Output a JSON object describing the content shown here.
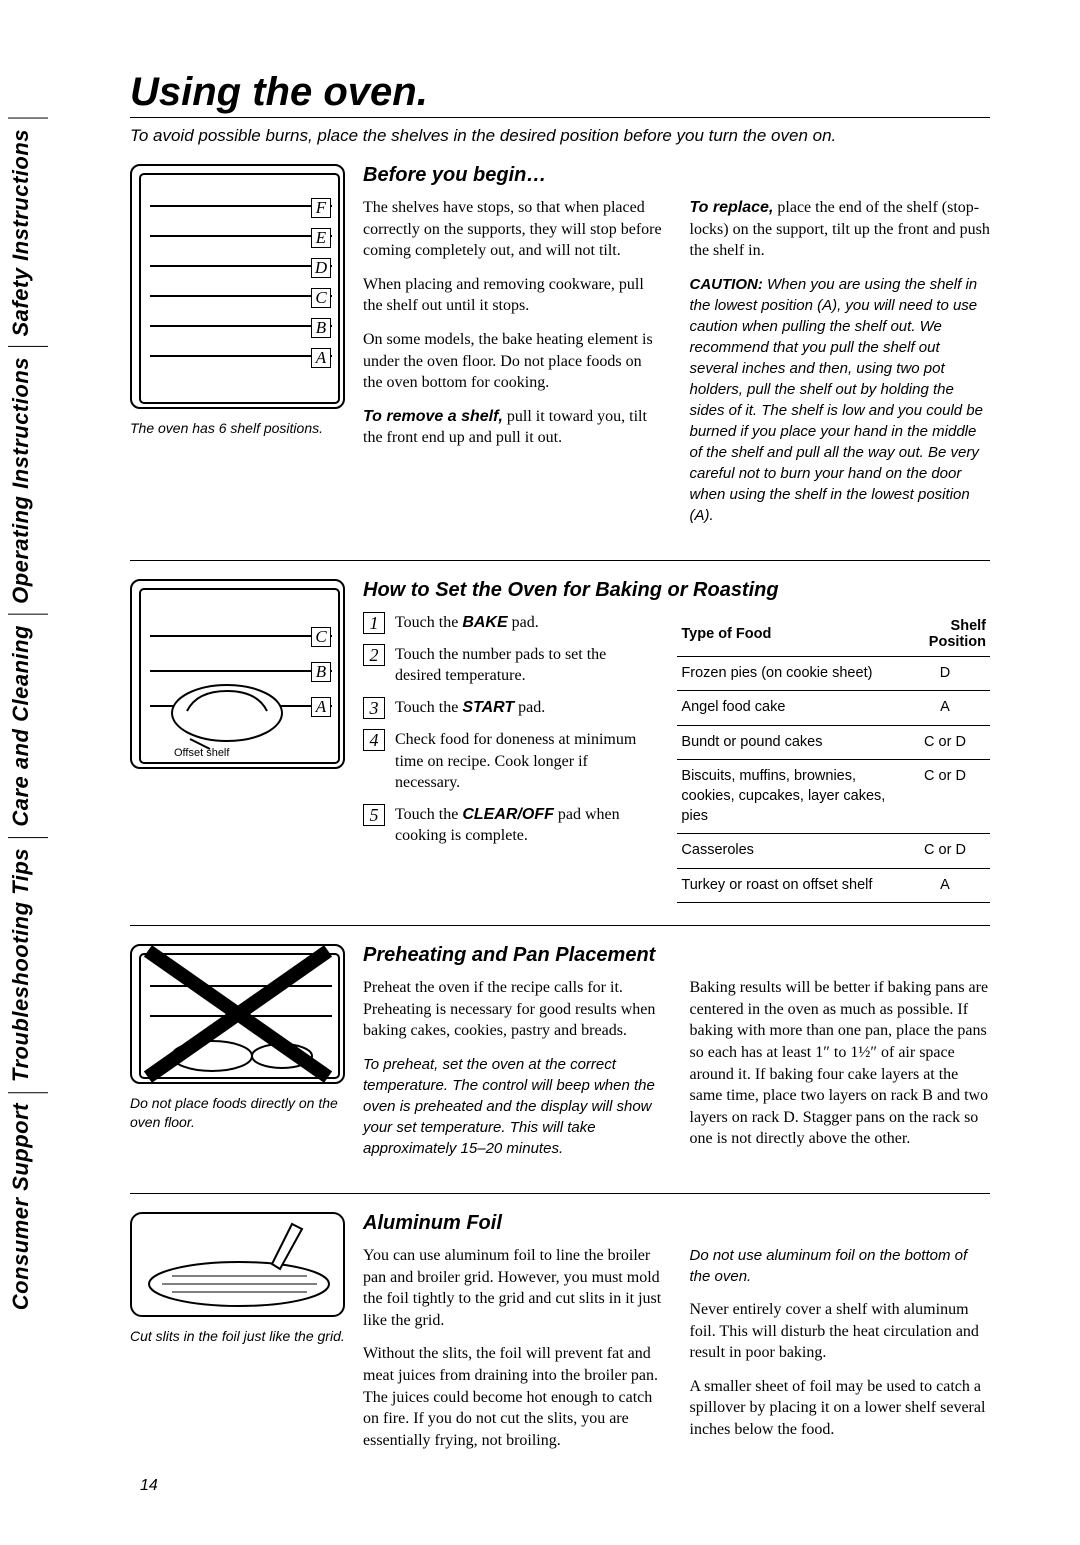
{
  "page_number": "14",
  "tabs": [
    "Consumer Support",
    "Troubleshooting Tips",
    "Care and Cleaning",
    "Operating Instructions",
    "Safety Instructions"
  ],
  "title": "Using the oven.",
  "subtitle": "To avoid possible burns, place the shelves in the desired position before you turn the oven on.",
  "sec1": {
    "heading": "Before you begin…",
    "caption": "The oven has 6 shelf positions.",
    "positions": [
      "F",
      "E",
      "D",
      "C",
      "B",
      "A"
    ],
    "p1": "The shelves have stops, so that when placed correctly on the supports, they will stop before coming completely out, and will not tilt.",
    "p2": "When placing and removing cookware, pull the shelf out until it stops.",
    "p3": "On some models, the bake heating element is under the oven floor. Do not place foods on the oven bottom for cooking.",
    "remove_label": "To remove a shelf,",
    "remove_text": " pull it toward you, tilt the front end up and pull it out.",
    "replace_label": "To replace,",
    "replace_text": " place the end of the shelf (stop-locks) on the support, tilt up the front and push the shelf in.",
    "caution_label": "CAUTION:",
    "caution_text": " When you are using the shelf in the lowest position (A), you will need to use caution when pulling the shelf out. We recommend that you pull the shelf out several inches and then, using two pot holders, pull the shelf out by holding the sides of it. The shelf is low and you could be burned if you place your hand in the middle of the shelf and pull all the way out. Be very careful not to burn your hand on the door when using the shelf in the lowest position (A)."
  },
  "sec2": {
    "heading": "How to Set the Oven for Baking or Roasting",
    "offset_label": "Offset shelf",
    "positions": [
      "C",
      "B",
      "A"
    ],
    "steps": [
      {
        "n": "1",
        "pre": "Touch the ",
        "bold": "BAKE",
        "post": " pad."
      },
      {
        "n": "2",
        "pre": "Touch the number pads to set the desired temperature.",
        "bold": "",
        "post": ""
      },
      {
        "n": "3",
        "pre": "Touch the ",
        "bold": "START",
        "post": " pad."
      },
      {
        "n": "4",
        "pre": "Check food for doneness at minimum time on recipe. Cook longer if necessary.",
        "bold": "",
        "post": ""
      },
      {
        "n": "5",
        "pre": "Touch the ",
        "bold": "CLEAR/OFF",
        "post": " pad when cooking is complete."
      }
    ],
    "table": {
      "h1": "Type of Food",
      "h2": "Shelf Position",
      "rows": [
        [
          "Frozen pies (on cookie sheet)",
          "D"
        ],
        [
          "Angel food cake",
          "A"
        ],
        [
          "Bundt or pound cakes",
          "C or D"
        ],
        [
          "Biscuits, muffins, brownies, cookies, cupcakes, layer cakes, pies",
          "C or D"
        ],
        [
          "Casseroles",
          "C or D"
        ],
        [
          "Turkey or roast on offset shelf",
          "A"
        ]
      ]
    }
  },
  "sec3": {
    "heading": "Preheating and Pan Placement",
    "caption": "Do not place foods directly on the oven floor.",
    "p1": "Preheat the oven if the recipe calls for it. Preheating is necessary for good results when baking cakes, cookies, pastry and breads.",
    "p2": "To preheat, set the oven at the correct temperature. The control will beep when the oven is preheated and the display will show your set temperature. This will take approximately 15–20 minutes.",
    "p3": "Baking results will be better if baking pans are centered in the oven as much as possible. If baking with more than one pan, place the pans so each has at least 1″ to 1½″ of air space around it. If baking four cake layers at the same time, place two layers on rack B and two layers on rack D. Stagger pans on the rack so one is not directly above the other."
  },
  "sec4": {
    "heading": "Aluminum Foil",
    "caption": "Cut slits in the foil just like the grid.",
    "p1": "You can use aluminum foil to line the broiler pan and broiler grid. However, you must mold the foil tightly to the grid and cut slits in it just like the grid.",
    "p2": "Without the slits, the foil will prevent fat and meat juices from draining into the broiler pan. The juices could become hot enough to catch on fire. If you do not cut the slits, you are essentially frying, not broiling.",
    "p3": "Do not use aluminum foil on the bottom of the oven.",
    "p4": "Never entirely cover a shelf with aluminum foil. This will disturb the heat circulation and result in poor baking.",
    "p5": "A smaller sheet of foil may be used to catch a spillover by placing it on a lower shelf several inches below the food."
  }
}
